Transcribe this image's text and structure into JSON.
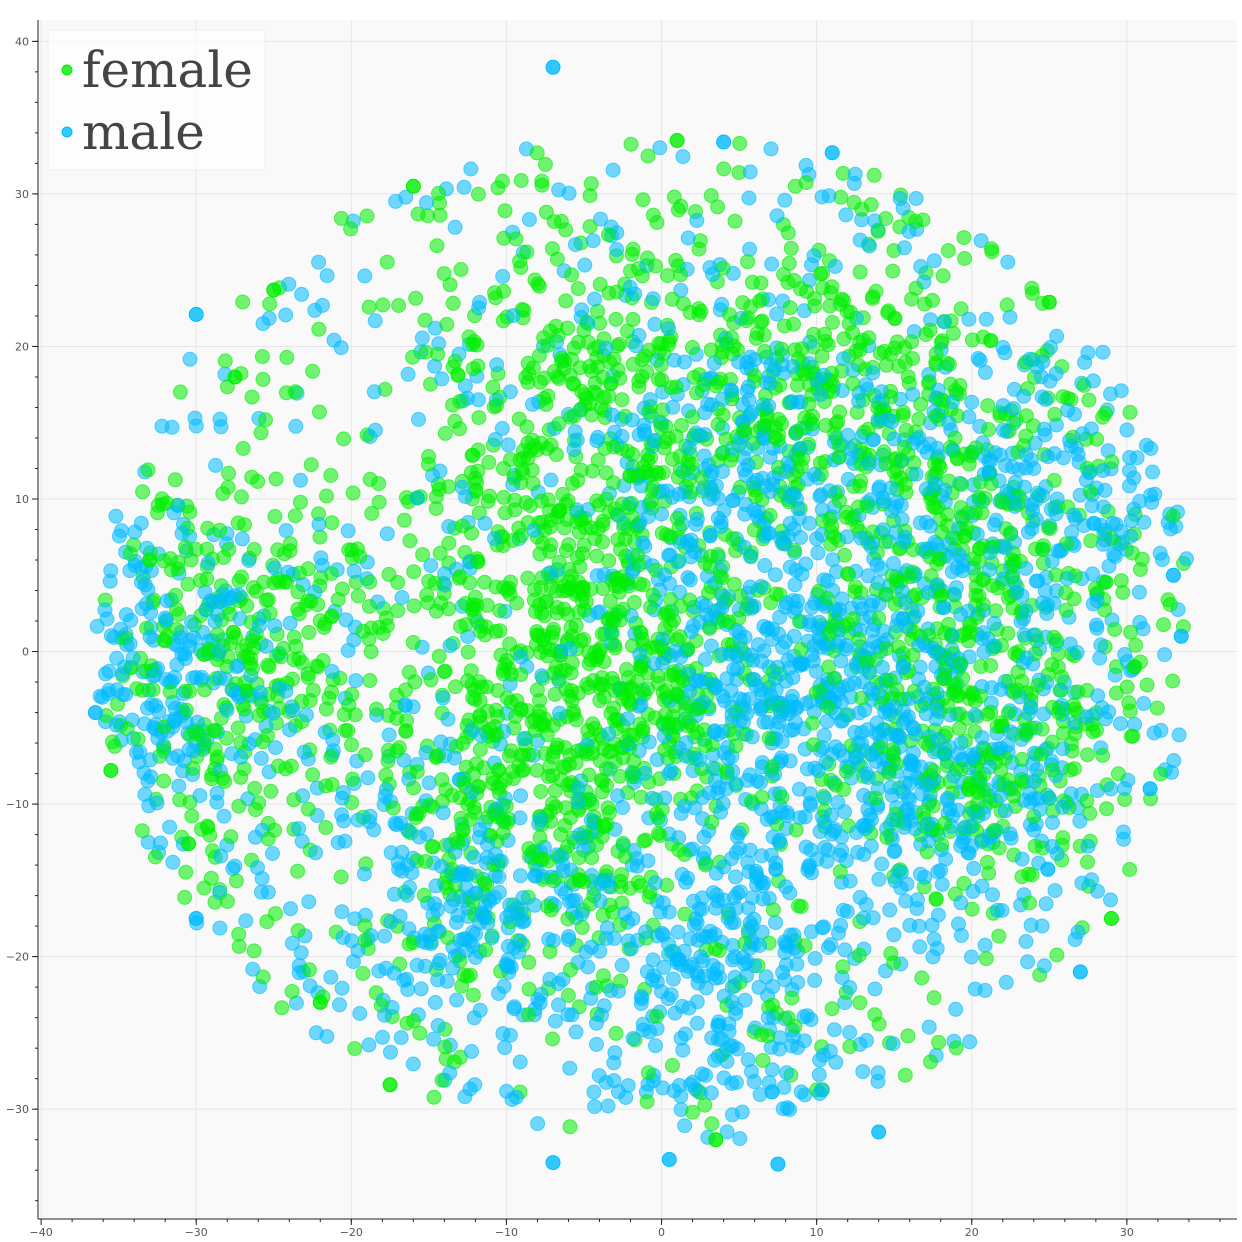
{
  "chart_data": {
    "type": "scatter",
    "title": "",
    "xlabel": "",
    "ylabel": "",
    "xlim": [
      -40.2,
      37.1
    ],
    "ylim": [
      -37.2,
      41.4
    ],
    "x_ticks": [
      -40,
      -30,
      -20,
      -10,
      0,
      10,
      20,
      30
    ],
    "y_ticks": [
      -30,
      -20,
      -10,
      0,
      10,
      20,
      30,
      40
    ],
    "x_tick_labels": [
      "−40",
      "−30",
      "−20",
      "−10",
      "0",
      "10",
      "20",
      "30"
    ],
    "y_tick_labels": [
      "−30",
      "−20",
      "−10",
      "0",
      "10",
      "20",
      "30",
      "40"
    ],
    "grid": true,
    "legend": {
      "position": "top-left"
    },
    "background_color": "#f9f9f9",
    "series": [
      {
        "name": "female",
        "color": "#00ee00",
        "point_count_approx": 9000,
        "cluster_centers": [
          [
            -4,
            17
          ],
          [
            -6,
            4
          ],
          [
            -2,
            -2
          ],
          [
            -8,
            -10
          ],
          [
            20,
            6
          ],
          [
            21,
            -6
          ],
          [
            -27,
            0
          ],
          [
            12,
            17
          ]
        ],
        "sample_points": [
          [
            1,
            33.5
          ],
          [
            -16,
            30.5
          ],
          [
            -25,
            23.7
          ],
          [
            -27.5,
            18
          ],
          [
            -33,
            6
          ],
          [
            -35.5,
            -7.8
          ],
          [
            -30.5,
            -12.6
          ],
          [
            -17.5,
            -28.4
          ],
          [
            3.5,
            -32
          ],
          [
            25,
            22.9
          ],
          [
            29,
            -17.5
          ],
          [
            30.5,
            -1
          ],
          [
            -22,
            -23
          ]
        ]
      },
      {
        "name": "male",
        "color": "#00bbff",
        "point_count_approx": 9000,
        "cluster_centers": [
          [
            5,
            12
          ],
          [
            8,
            0
          ],
          [
            10,
            -8
          ],
          [
            -32,
            -2
          ],
          [
            -12,
            -16
          ],
          [
            22,
            10
          ],
          [
            20,
            -8
          ],
          [
            3,
            -22
          ]
        ],
        "sample_points": [
          [
            -7,
            38.3
          ],
          [
            -30,
            22.1
          ],
          [
            -36.5,
            -4
          ],
          [
            -30,
            -17.5
          ],
          [
            -7,
            -33.5
          ],
          [
            0.5,
            -33.3
          ],
          [
            7.5,
            -33.6
          ],
          [
            14,
            -31.5
          ],
          [
            33.5,
            1
          ],
          [
            33,
            5
          ],
          [
            31.5,
            -9
          ],
          [
            27,
            -21
          ],
          [
            11,
            32.7
          ],
          [
            4,
            33.4
          ]
        ]
      }
    ]
  }
}
